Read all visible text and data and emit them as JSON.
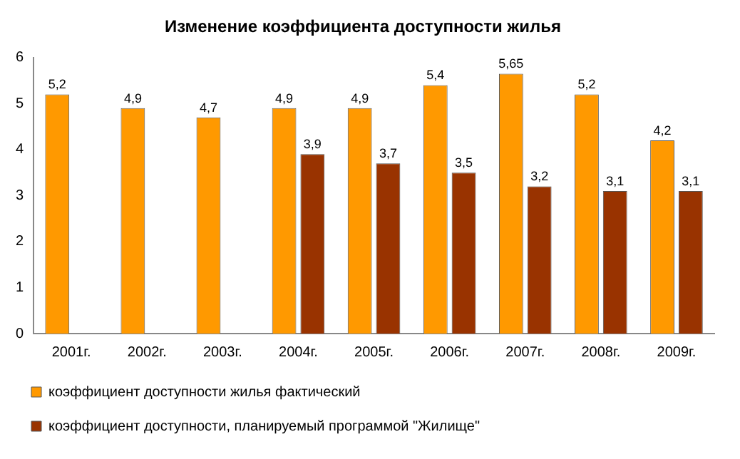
{
  "chart_data": {
    "type": "bar",
    "title": "Изменение коэффициента доступности жилья",
    "categories": [
      "2001г.",
      "2002г.",
      "2003г.",
      "2004г.",
      "2005г.",
      "2006г.",
      "2007г.",
      "2008г.",
      "2009г."
    ],
    "series": [
      {
        "name": "коэффициент доступности жилья фактический",
        "color": "#ff9900",
        "values": [
          5.2,
          4.9,
          4.7,
          4.9,
          4.9,
          5.4,
          5.65,
          5.2,
          4.2
        ],
        "value_labels": [
          "5,2",
          "4,9",
          "4,7",
          "4,9",
          "4,9",
          "5,4",
          "5,65",
          "5,2",
          "4,2"
        ]
      },
      {
        "name": "коэффициент доступности, планируемый программой \"Жилище\"",
        "color": "#993300",
        "values": [
          null,
          null,
          null,
          3.9,
          3.7,
          3.5,
          3.2,
          3.1,
          3.1
        ],
        "value_labels": [
          null,
          null,
          null,
          "3,9",
          "3,7",
          "3,5",
          "3,2",
          "3,1",
          "3,1"
        ]
      }
    ],
    "ylim": [
      0,
      6
    ],
    "yticks": [
      0,
      1,
      2,
      3,
      4,
      5,
      6
    ],
    "grid": false,
    "legend": "bottom"
  }
}
